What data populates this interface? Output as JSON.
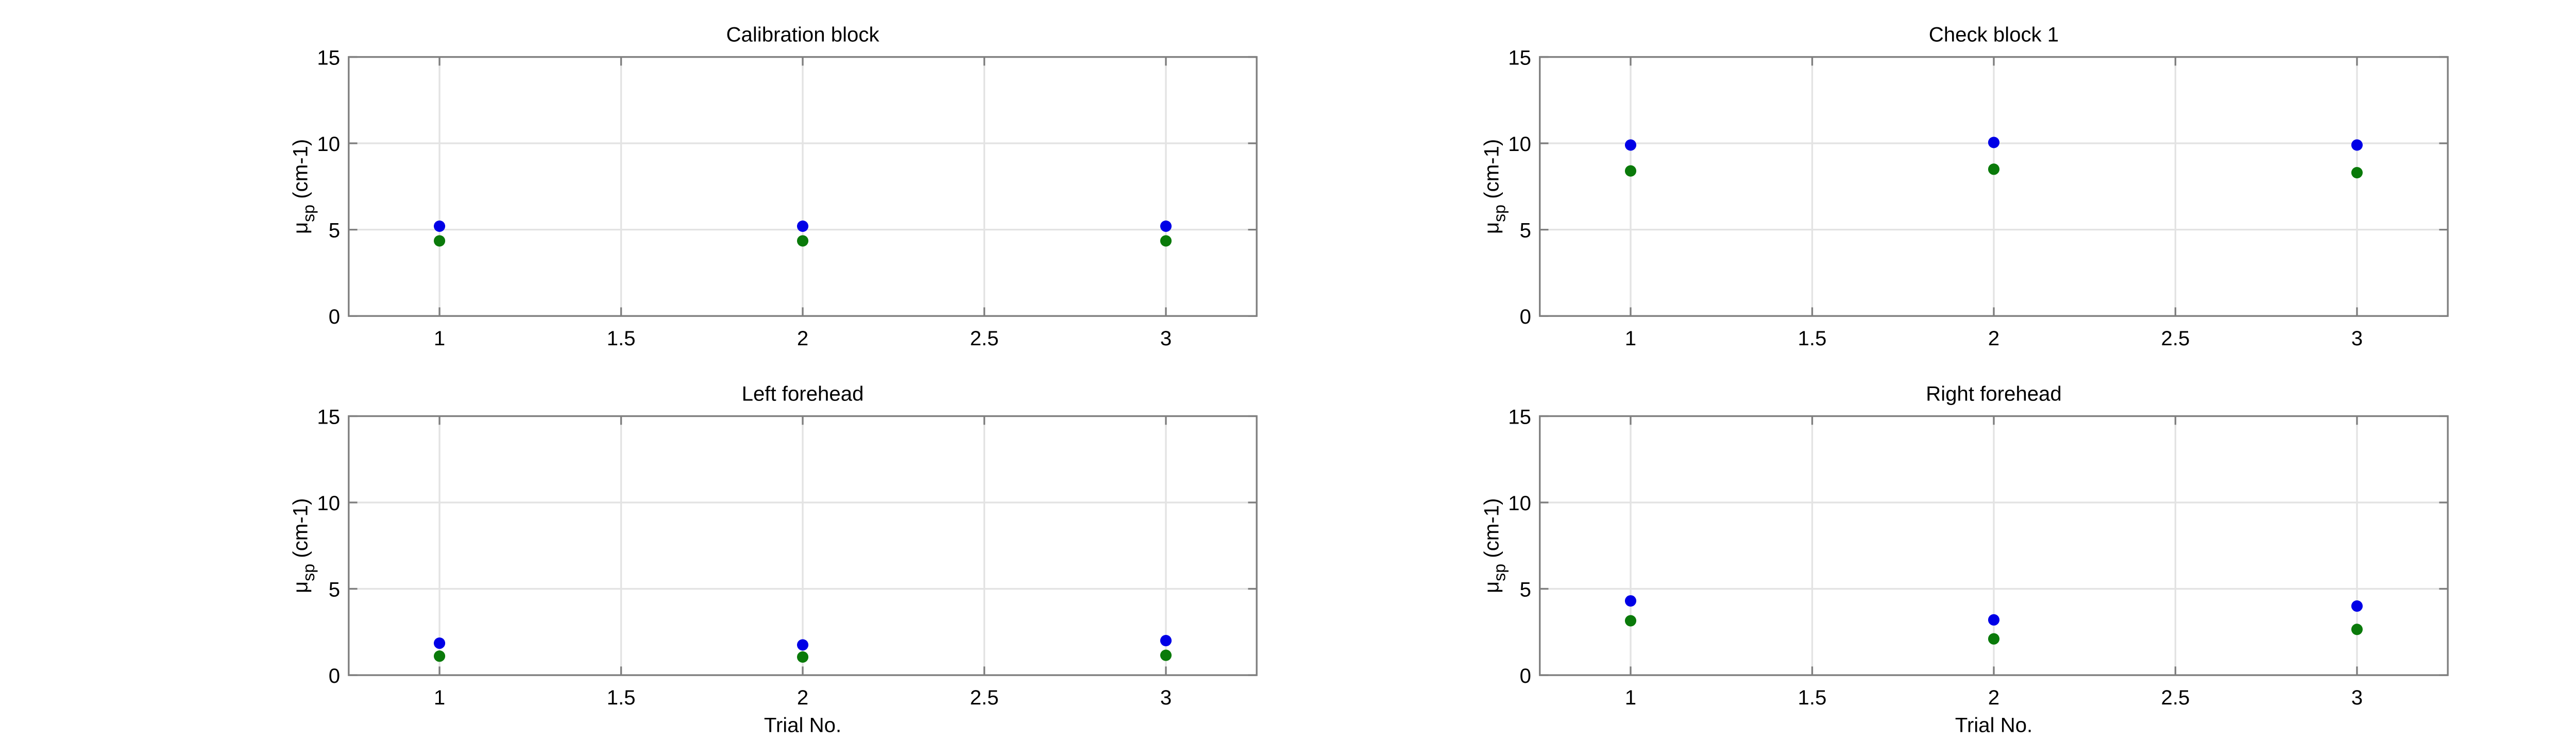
{
  "figure": {
    "background": "#ffffff",
    "grid_color": "#e3e3e3",
    "axis_color": "#7f7f7f"
  },
  "series_colors": [
    "#0000e6",
    "#0a7a0a"
  ],
  "chart_data": [
    {
      "type": "scatter",
      "title": "Calibration block",
      "xlabel": "",
      "ylabel": "μsp (cm-1)",
      "ylabel_parts": {
        "symbol": "μ",
        "subscript": "sp",
        "unit": "(cm-1)"
      },
      "xlim": [
        0.75,
        3.25
      ],
      "ylim": [
        0,
        15
      ],
      "xticks": [
        "1",
        "1.5",
        "2",
        "2.5",
        "3"
      ],
      "yticks": [
        "0",
        "5",
        "10",
        "15"
      ],
      "grid": true,
      "series": [
        {
          "x": [
            1,
            2,
            3
          ],
          "y": [
            5.2,
            5.2,
            5.2
          ]
        },
        {
          "x": [
            1,
            2,
            3
          ],
          "y": [
            4.35,
            4.35,
            4.35
          ]
        }
      ]
    },
    {
      "type": "scatter",
      "title": "Check block 1",
      "xlabel": "",
      "ylabel": "μsp (cm-1)",
      "ylabel_parts": {
        "symbol": "μ",
        "subscript": "sp",
        "unit": "(cm-1)"
      },
      "xlim": [
        0.75,
        3.25
      ],
      "ylim": [
        0,
        15
      ],
      "xticks": [
        "1",
        "1.5",
        "2",
        "2.5",
        "3"
      ],
      "yticks": [
        "0",
        "5",
        "10",
        "15"
      ],
      "grid": true,
      "series": [
        {
          "x": [
            1,
            2,
            3
          ],
          "y": [
            9.9,
            10.05,
            9.9
          ]
        },
        {
          "x": [
            1,
            2,
            3
          ],
          "y": [
            8.4,
            8.5,
            8.3
          ]
        }
      ]
    },
    {
      "type": "scatter",
      "title": "Left forehead",
      "xlabel": "Trial No.",
      "ylabel": "μsp (cm-1)",
      "ylabel_parts": {
        "symbol": "μ",
        "subscript": "sp",
        "unit": "(cm-1)"
      },
      "xlim": [
        0.75,
        3.25
      ],
      "ylim": [
        0,
        15
      ],
      "xticks": [
        "1",
        "1.5",
        "2",
        "2.5",
        "3"
      ],
      "yticks": [
        "0",
        "5",
        "10",
        "15"
      ],
      "grid": true,
      "series": [
        {
          "x": [
            1,
            2,
            3
          ],
          "y": [
            1.85,
            1.75,
            2.0
          ]
        },
        {
          "x": [
            1,
            2,
            3
          ],
          "y": [
            1.1,
            1.05,
            1.15
          ]
        }
      ]
    },
    {
      "type": "scatter",
      "title": "Right forehead",
      "xlabel": "Trial No.",
      "ylabel": "μsp (cm-1)",
      "ylabel_parts": {
        "symbol": "μ",
        "subscript": "sp",
        "unit": "(cm-1)"
      },
      "xlim": [
        0.75,
        3.25
      ],
      "ylim": [
        0,
        15
      ],
      "xticks": [
        "1",
        "1.5",
        "2",
        "2.5",
        "3"
      ],
      "yticks": [
        "0",
        "5",
        "10",
        "15"
      ],
      "grid": true,
      "series": [
        {
          "x": [
            1,
            2,
            3
          ],
          "y": [
            4.3,
            3.2,
            4.0
          ]
        },
        {
          "x": [
            1,
            2,
            3
          ],
          "y": [
            3.15,
            2.1,
            2.65
          ]
        }
      ]
    }
  ]
}
